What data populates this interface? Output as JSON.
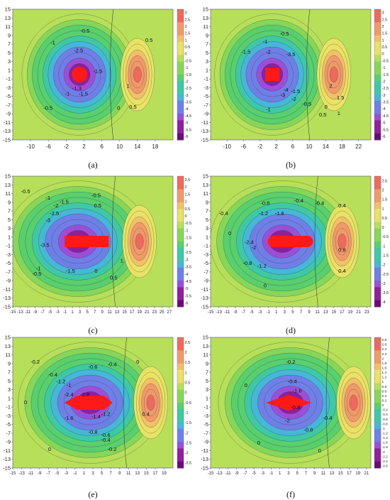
{
  "colors": {
    "scale": [
      "#6a0a78",
      "#8f1f9a",
      "#9b4fd6",
      "#6f7fe6",
      "#47b6d8",
      "#3fc8a6",
      "#59cf6e",
      "#86d65a",
      "#b7df5a",
      "#e8e266",
      "#f2c068",
      "#f09a6a",
      "#ec6b5e"
    ],
    "obstacle": "#ff1a1a",
    "contour": "#2b2b2b"
  },
  "chart_data": [
    {
      "id": "a",
      "caption": "(a)",
      "type": "heatmap",
      "kind": "contour",
      "obstacle": "circle",
      "x_ticks": [
        "-10",
        "-6",
        "-2",
        "2",
        "6",
        "10",
        "14",
        "18"
      ],
      "y_ticks": [
        "15",
        "13",
        "11",
        "9",
        "7",
        "5",
        "3",
        "1",
        "-1",
        "-3",
        "-5",
        "-7",
        "-9",
        "-11",
        "-13",
        "-15"
      ],
      "xlim": [
        -14,
        22
      ],
      "ylim": [
        -15,
        15
      ],
      "colorbar_ticks": [
        "3",
        "2.5",
        "2",
        "1.5",
        "1",
        "0.5",
        "0",
        "-0.5",
        "-1",
        "-1.5",
        "-2",
        "-2.5",
        "-3",
        "-3.5",
        "-4",
        "-4.5",
        "-5",
        "-5.5",
        "-6"
      ],
      "colorbar_range": [
        -6,
        3
      ],
      "contour_labels": [
        "-0.5",
        "-1",
        "-2.5",
        "-1.5",
        "-1.5",
        "-1",
        "-0.5",
        "0",
        "0.5",
        "1",
        "0.5",
        "-1.3"
      ]
    },
    {
      "id": "b",
      "caption": "(b)",
      "type": "heatmap",
      "kind": "contour",
      "obstacle": "square",
      "x_ticks": [
        "-10",
        "-6",
        "-2",
        "2",
        "6",
        "10",
        "14",
        "18",
        "22"
      ],
      "y_ticks": [
        "15",
        "13",
        "11",
        "9",
        "7",
        "5",
        "3",
        "1",
        "-1",
        "-3",
        "-5",
        "-7",
        "-9",
        "-11",
        "-13",
        "-15"
      ],
      "xlim": [
        -14,
        25
      ],
      "ylim": [
        -15,
        15
      ],
      "colorbar_ticks": [
        "3",
        "2.5",
        "2",
        "1.5",
        "1",
        "0.5",
        "0",
        "-0.5",
        "-1",
        "-1.5",
        "-2",
        "-2.5",
        "-3",
        "-3.5",
        "-4",
        "-4.5",
        "-5",
        "-5.5",
        "-6"
      ],
      "colorbar_range": [
        -6,
        3
      ],
      "contour_labels": [
        "-0.5",
        "-1",
        "-1.5",
        "-2",
        "-3.5",
        "-1.5",
        "-1",
        "-0.5",
        "0",
        "0.5",
        "1",
        "1.5",
        "2",
        "-2",
        "-3",
        "-4"
      ]
    },
    {
      "id": "c",
      "caption": "(c)",
      "type": "heatmap",
      "kind": "contour",
      "obstacle": "rectangle",
      "x_ticks": [
        "-15",
        "-13",
        "-11",
        "-9",
        "-7",
        "-5",
        "-3",
        "-1",
        "1",
        "3",
        "5",
        "7",
        "9",
        "11",
        "13",
        "15",
        "17",
        "19",
        "21",
        "23",
        "25",
        "27"
      ],
      "y_ticks": [
        "15",
        "13",
        "11",
        "9",
        "7",
        "5",
        "3",
        "1",
        "-1",
        "-3",
        "-5",
        "-7",
        "-9",
        "-11",
        "-13",
        "-15"
      ],
      "xlim": [
        -15,
        28
      ],
      "ylim": [
        -15,
        15
      ],
      "colorbar_ticks": [
        "2.5",
        "2",
        "1.5",
        "1",
        "0.5",
        "0",
        "-0.5",
        "-1",
        "-1.5",
        "-2",
        "-2.5",
        "-3",
        "-3.5",
        "-4",
        "-4.5",
        "-5",
        "-5.5",
        "-6"
      ],
      "colorbar_range": [
        -6,
        3
      ],
      "contour_labels": [
        "-0.5",
        "-1",
        "-1.5",
        "-2",
        "-2.5",
        "-3",
        "-3.5",
        "-1.5",
        "-1",
        "-0.5",
        "0",
        "0.5",
        "1",
        "0.5",
        "-0.5"
      ]
    },
    {
      "id": "d",
      "caption": "(d)",
      "type": "heatmap",
      "kind": "contour",
      "obstacle": "rounded-rectangle",
      "x_ticks": [
        "-15",
        "-13",
        "-11",
        "-9",
        "-7",
        "-5",
        "-3",
        "-1",
        "1",
        "3",
        "5",
        "7",
        "9",
        "11",
        "13",
        "15",
        "17",
        "19",
        "21",
        "23"
      ],
      "y_ticks": [
        "15",
        "13",
        "11",
        "9",
        "7",
        "5",
        "3",
        "1",
        "-1",
        "-3",
        "-5",
        "-7",
        "-9",
        "-11",
        "-13",
        "-15"
      ],
      "xlim": [
        -15,
        24
      ],
      "ylim": [
        -15,
        15
      ],
      "colorbar_ticks": [
        "2.5",
        "2",
        "1.5",
        "1",
        "0.5",
        "0",
        "-0.5",
        "-1",
        "-1.5",
        "-2",
        "-2.5",
        "-3",
        "-3.5",
        "-4"
      ],
      "colorbar_range": [
        -4,
        2.5
      ],
      "contour_labels": [
        "-0.4",
        "-0.8",
        "-1.2",
        "-1.6",
        "-2",
        "-2.4",
        "-0.8",
        "-1.2",
        "0",
        "0",
        "0.4",
        "0.8",
        "0.4",
        "-0.4",
        "-0.4"
      ]
    },
    {
      "id": "e",
      "caption": "(e)",
      "type": "heatmap",
      "kind": "contour",
      "obstacle": "arrow",
      "x_ticks": [
        "-15",
        "-13",
        "-11",
        "-9",
        "-7",
        "-5",
        "-3",
        "-1",
        "1",
        "3",
        "5",
        "7",
        "9",
        "11",
        "13",
        "15",
        "17",
        "19"
      ],
      "y_ticks": [
        "15",
        "13",
        "11",
        "9",
        "7",
        "5",
        "3",
        "1",
        "-1",
        "-3",
        "-5",
        "-7",
        "-9",
        "-11",
        "-13",
        "-15"
      ],
      "xlim": [
        -15,
        21
      ],
      "ylim": [
        -15,
        15
      ],
      "colorbar_ticks": [
        "2.5",
        "2",
        "1.5",
        "1",
        "0.5",
        "0",
        "-0.5",
        "-1",
        "-1.5",
        "-2",
        "-2.5",
        "-3",
        "-3.5"
      ],
      "colorbar_range": [
        -3.5,
        2.5
      ],
      "contour_labels": [
        "-0.2",
        "-0.4",
        "-0.6",
        "-0.4",
        "-1.2",
        "-1",
        "-2.4",
        "-2.8",
        "-1.2",
        "-1.4",
        "-1.6",
        "-0.8",
        "-0.6",
        "-0.4",
        "-0.2",
        "0",
        "0",
        "0",
        "0.4"
      ]
    },
    {
      "id": "f",
      "caption": "(f)",
      "type": "heatmap",
      "kind": "contour",
      "obstacle": "diamond",
      "x_ticks": [
        "-15",
        "-13",
        "-11",
        "-9",
        "-7",
        "-5",
        "-3",
        "-1",
        "1",
        "3",
        "5",
        "7",
        "9",
        "11",
        "13",
        "15",
        "17",
        "19",
        "21"
      ],
      "y_ticks": [
        "15",
        "13",
        "11",
        "9",
        "7",
        "5",
        "3",
        "1",
        "-1",
        "-3",
        "-5",
        "-7",
        "-9",
        "-11",
        "-13",
        "-15"
      ],
      "xlim": [
        -15,
        22
      ],
      "ylim": [
        -15,
        15
      ],
      "colorbar_ticks": [
        "2.8",
        "2.6",
        "2.4",
        "2.2",
        "2",
        "1.8",
        "1.6",
        "1.4",
        "1.2",
        "1",
        "0.8",
        "0.6",
        "0.4",
        "0.2",
        "0",
        "-0.2",
        "-0.4",
        "-0.6",
        "-0.8",
        "-1",
        "-1.2",
        "-1.4",
        "-1.6",
        "-1.8",
        "-2",
        "-2.2",
        "-2.4",
        "-2.6"
      ],
      "colorbar_range": [
        -2.6,
        2.8
      ],
      "contour_labels": [
        "-0.2",
        "-0.4",
        "-0.8",
        "-1.6",
        "-2",
        "-0.4",
        "-0.8",
        "0",
        "0",
        "0"
      ]
    }
  ]
}
